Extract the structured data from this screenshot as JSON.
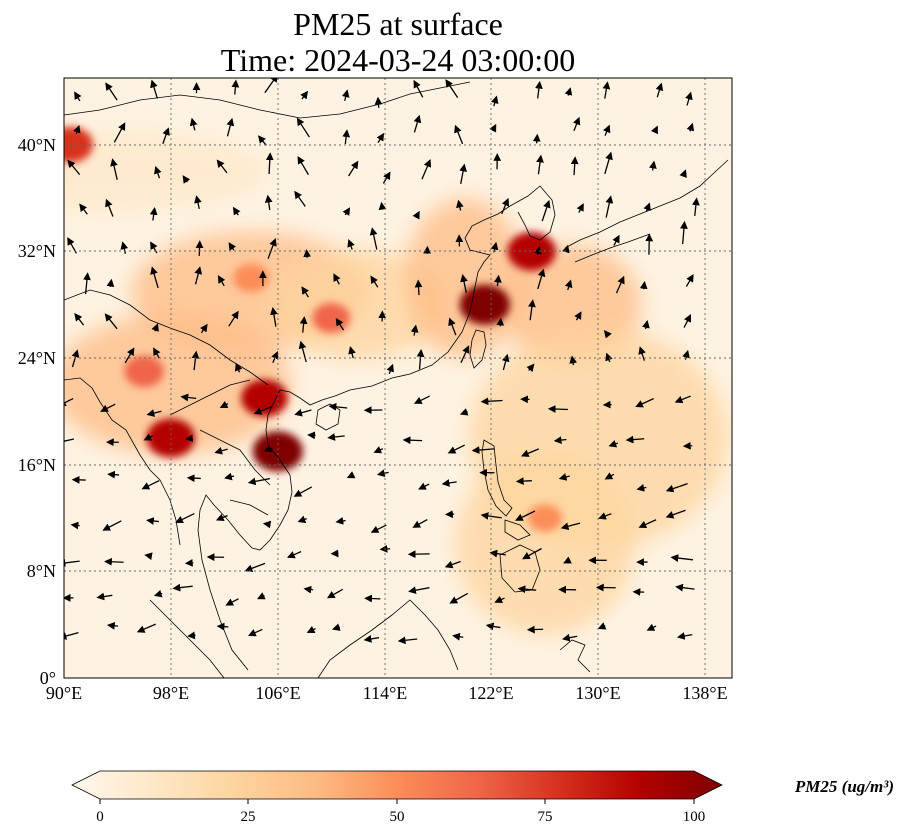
{
  "title": "PM25 at surface",
  "subtitle": "Time: 2024-03-24 03:00:00",
  "map": {
    "lon_range": [
      90,
      140
    ],
    "lat_range": [
      0,
      45
    ],
    "x_ticks": [
      "90°E",
      "98°E",
      "106°E",
      "114°E",
      "122°E",
      "130°E",
      "138°E"
    ],
    "y_ticks": [
      "0°",
      "8°N",
      "16°N",
      "24°N",
      "32°N",
      "40°N"
    ],
    "gridlines": "dotted",
    "coastlines": true
  },
  "colorbar": {
    "label": "PM25 (ug/m³)",
    "ticks": [
      "0",
      "25",
      "50",
      "75",
      "100"
    ],
    "range": [
      0,
      100
    ],
    "colormap": "OrRd",
    "extend": "both",
    "colors": [
      "#fff7ec",
      "#fee8c8",
      "#fdd49e",
      "#fdbb84",
      "#fc8d59",
      "#ef6548",
      "#d7301f",
      "#b30000",
      "#7f0000"
    ]
  },
  "chart_data": {
    "type": "heatmap",
    "variable": "PM25",
    "units": "ug/m3",
    "hotspots": [
      {
        "lon": 98,
        "lat": 18,
        "value": 90
      },
      {
        "lon": 106,
        "lat": 17,
        "value": 95
      },
      {
        "lon": 105,
        "lat": 21,
        "value": 85
      },
      {
        "lon": 121.5,
        "lat": 28,
        "value": 95
      },
      {
        "lon": 125,
        "lat": 32,
        "value": 90
      },
      {
        "lon": 90.5,
        "lat": 40,
        "value": 80
      },
      {
        "lon": 104,
        "lat": 30,
        "value": 55
      },
      {
        "lon": 110,
        "lat": 27,
        "value": 60
      },
      {
        "lon": 96,
        "lat": 23,
        "value": 65
      },
      {
        "lon": 126,
        "lat": 12,
        "value": 50
      }
    ],
    "wind_vectors": "present"
  }
}
